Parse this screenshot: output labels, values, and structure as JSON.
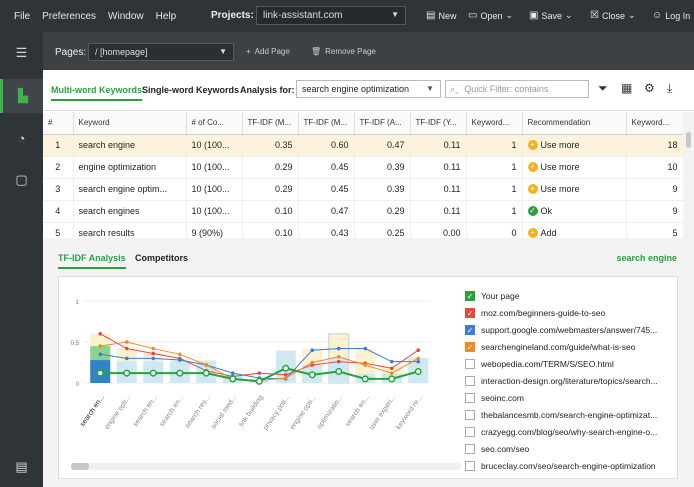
{
  "menu": [
    "File",
    "Preferences",
    "Window",
    "Help"
  ],
  "projects": {
    "label": "Projects:",
    "value": "link-assistant.com"
  },
  "toolbar": {
    "new": "New",
    "open": "Open",
    "save": "Save",
    "close": "Close",
    "login": "Log In"
  },
  "pages": {
    "label": "Pages:",
    "value": "/ [homepage]",
    "add": "Add Page",
    "remove": "Remove Page"
  },
  "tabs": {
    "multi": "Multi-word Keywords",
    "single": "Single-word Keywords"
  },
  "analysis": {
    "label": "Analysis for:",
    "value": "search engine optimization"
  },
  "quick_filter": {
    "placeholder": "Quick Filter: contains"
  },
  "columns": [
    "#",
    "Keyword",
    "# of Co...",
    "TF-IDF (M...",
    "TF-IDF (M...",
    "TF-IDF (A...",
    "TF-IDF (Y...",
    "Keyword...",
    "Recommendation",
    "Keyword..."
  ],
  "rows": [
    {
      "n": "1",
      "kw": "search engine",
      "occ": "10 (100...",
      "t1": "0.35",
      "t2": "0.60",
      "t3": "0.47",
      "t4": "0.11",
      "k": "1",
      "rec": "Use more",
      "rec_type": "plus",
      "k2": "18"
    },
    {
      "n": "2",
      "kw": "engine optimization",
      "occ": "10 (100...",
      "t1": "0.29",
      "t2": "0.45",
      "t3": "0.39",
      "t4": "0.11",
      "k": "1",
      "rec": "Use more",
      "rec_type": "plus",
      "k2": "10"
    },
    {
      "n": "3",
      "kw": "search engine optim...",
      "occ": "10 (100...",
      "t1": "0.29",
      "t2": "0.45",
      "t3": "0.39",
      "t4": "0.11",
      "k": "1",
      "rec": "Use more",
      "rec_type": "plus",
      "k2": "9"
    },
    {
      "n": "4",
      "kw": "search engines",
      "occ": "10 (100...",
      "t1": "0.10",
      "t2": "0.47",
      "t3": "0.29",
      "t4": "0.11",
      "k": "1",
      "rec": "Ok",
      "rec_type": "ok",
      "k2": "9"
    },
    {
      "n": "5",
      "kw": "search results",
      "occ": "9 (90%)",
      "t1": "0.10",
      "t2": "0.43",
      "t3": "0.25",
      "t4": "0.00",
      "k": "0",
      "rec": "Add",
      "rec_type": "plus",
      "k2": "5"
    }
  ],
  "lower_tabs": {
    "tfidf": "TF-IDF Analysis",
    "competitors": "Competitors",
    "keyword": "search engine"
  },
  "chart_data": {
    "type": "bar",
    "ylim": [
      0,
      1
    ],
    "yticks": [
      "1",
      "0.5",
      "0"
    ],
    "categories": [
      "search en...",
      "engine opti...",
      "search en...",
      "search en...",
      "search res...",
      "social med...",
      "link building",
      "privacy poli...",
      "engine opti...",
      "optimizatio...",
      "search en...",
      "user experi...",
      "keyword re..."
    ],
    "series": [
      {
        "name": "Your page",
        "color": "#27a337",
        "values": [
          0.12,
          0.12,
          0.12,
          0.12,
          0.12,
          0.05,
          0.02,
          0.18,
          0.1,
          0.14,
          0.05,
          0.05,
          0.14
        ]
      },
      {
        "name": "moz.com/beginners-guide-to-seo",
        "color": "#e8463a",
        "values": [
          0.6,
          0.42,
          0.36,
          0.3,
          0.15,
          0.08,
          0.12,
          0.1,
          0.22,
          0.26,
          0.24,
          0.18,
          0.4
        ]
      },
      {
        "name": "support.google.com/webmasters/answer/745...",
        "color": "#3b7dd8",
        "values": [
          0.35,
          0.3,
          0.3,
          0.28,
          0.22,
          0.12,
          0.06,
          0.05,
          0.4,
          0.42,
          0.42,
          0.26,
          0.26
        ]
      },
      {
        "name": "searchengineland.com/guide/what-is-seo",
        "color": "#f08a25",
        "values": [
          0.45,
          0.5,
          0.42,
          0.35,
          0.22,
          0.05,
          0.03,
          0.06,
          0.25,
          0.32,
          0.22,
          0.12,
          0.3
        ]
      }
    ],
    "avg_bars": [
      0.6,
      0.42,
      0.36,
      0.3,
      0.28,
      0.05,
      0.04,
      0.1,
      0.42,
      0.6,
      0.42,
      0.2,
      0.3
    ]
  },
  "legend": [
    {
      "label": "Your page",
      "checked": true,
      "color": "#27a337"
    },
    {
      "label": "moz.com/beginners-guide-to-seo",
      "checked": true,
      "color": "#e8463a"
    },
    {
      "label": "support.google.com/webmasters/answer/745...",
      "checked": true,
      "color": "#3b7dd8"
    },
    {
      "label": "searchengineland.com/guide/what-is-seo",
      "checked": true,
      "color": "#f08a25"
    },
    {
      "label": "webopedia.com/TERM/S/SEO.html",
      "checked": false
    },
    {
      "label": "interaction-design.org/literature/topics/search...",
      "checked": false
    },
    {
      "label": "seoinc.com",
      "checked": false
    },
    {
      "label": "thebalancesmb.com/search-engine-optimizat...",
      "checked": false
    },
    {
      "label": "crazyegg.com/blog/seo/why-search-engine-o...",
      "checked": false
    },
    {
      "label": "seo.com/seo",
      "checked": false
    },
    {
      "label": "bruceclay.com/seo/search-engine-optimization",
      "checked": false
    }
  ]
}
